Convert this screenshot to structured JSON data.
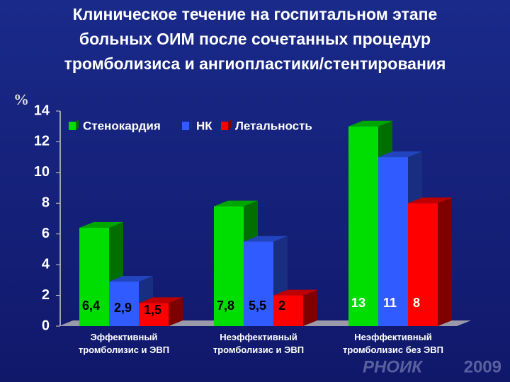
{
  "chart_data": {
    "type": "bar3d",
    "title": [
      "Клиническое течение  на госпитальном этапе",
      "больных ОИМ после сочетанных процедур",
      "тромболизиса и ангиопластики/стентирования"
    ],
    "y_label": "%",
    "categories": [
      "Эффективный\nтромболизис и ЭВП",
      "Неэффективный\nтромболизис и ЭВП",
      "Неэффективный\nтромболизис без ЭВП"
    ],
    "series": [
      {
        "name": "Стенокардия",
        "color": "#00dd00",
        "values": [
          6.4,
          7.8,
          13
        ],
        "value_labels": [
          "6,4",
          "7,8",
          "13"
        ]
      },
      {
        "name": "НК",
        "color": "#2f5bff",
        "values": [
          2.9,
          5.5,
          11
        ],
        "value_labels": [
          "2,9",
          "5,5",
          "11"
        ]
      },
      {
        "name": "Летальность",
        "color": "#ff0000",
        "values": [
          1.5,
          2,
          8
        ],
        "value_labels": [
          "1,5",
          "2",
          "8"
        ]
      }
    ],
    "ylim": [
      0,
      14
    ],
    "yticks": [
      0,
      2,
      4,
      6,
      8,
      10,
      12,
      14
    ],
    "watermark": "РНОИК",
    "year": "2009"
  }
}
